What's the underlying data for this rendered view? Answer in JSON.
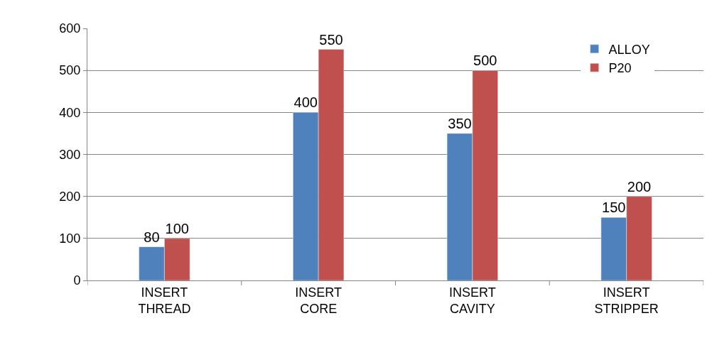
{
  "chart_data": {
    "type": "bar",
    "categories": [
      "INSERT THREAD",
      "INSERT CORE",
      "INSERT CAVITY",
      "INSERT STRIPPER"
    ],
    "series": [
      {
        "name": "ALLOY",
        "color": "#4f81bd",
        "values": [
          80,
          400,
          350,
          150
        ]
      },
      {
        "name": "P20",
        "color": "#c0504d",
        "values": [
          100,
          550,
          500,
          200
        ]
      }
    ],
    "ylim": [
      0,
      600
    ],
    "yticks": [
      0,
      100,
      200,
      300,
      400,
      500,
      600
    ],
    "grid": "y",
    "legend": "top right",
    "data_labels": true
  }
}
